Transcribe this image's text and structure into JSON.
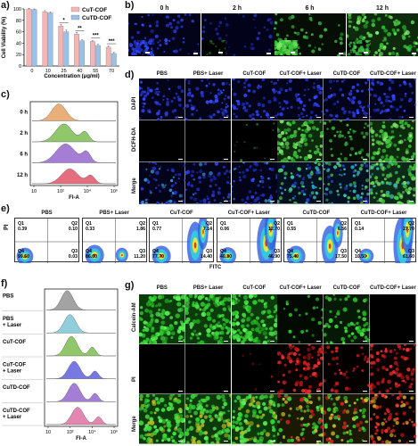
{
  "panels": {
    "a": {
      "letter": "a)",
      "chart_data": {
        "type": "bar",
        "categories": [
          "0",
          "10",
          "25",
          "40",
          "55",
          "70"
        ],
        "series": [
          {
            "name": "CuT-COF",
            "values": [
              100,
              95,
              70,
              56,
              43,
              33
            ],
            "errors": [
              1,
              2,
              3,
              3,
              2,
              2
            ],
            "color": "#f3b6b6"
          },
          {
            "name": "CuTD-COF",
            "values": [
              99,
              93,
              60,
              44,
              36,
              22
            ],
            "errors": [
              1,
              2,
              3,
              2,
              2,
              2
            ],
            "color": "#9bc2e6"
          }
        ],
        "ylim": [
          0,
          100
        ],
        "yticks": [
          "0",
          "20",
          "40",
          "60",
          "80",
          "100"
        ],
        "xlabel": "Concentration (μg/ml)",
        "ylabel": "Cell Viability (%)",
        "significance": [
          "*",
          "**",
          "***",
          "***"
        ]
      }
    },
    "b": {
      "letter": "b)",
      "timepoints": [
        "0 h",
        "2 h",
        "6 h",
        "12 h"
      ]
    },
    "c": {
      "letter": "c)",
      "chart_data": {
        "type": "area",
        "series": [
          {
            "name": "0 h",
            "color": "#e8a76a"
          },
          {
            "name": "2 h",
            "color": "#86c15c"
          },
          {
            "name": "6 h",
            "color": "#9b6fd0"
          },
          {
            "name": "12 h",
            "color": "#e25f70"
          }
        ],
        "xlabel": "FI-A",
        "xticks": [
          "10",
          "10²",
          "10⁴",
          "10⁶"
        ]
      }
    },
    "d": {
      "letter": "d)",
      "columns": [
        "PBS",
        "PBS+ Laser",
        "CuT-COF",
        "CuT-COF+ Laser",
        "CuTD-COF",
        "CuTD-COF+ Laser"
      ],
      "rows": [
        "DAPI",
        "DCFH-DA",
        "Merge"
      ]
    },
    "e": {
      "letter": "e)",
      "ylabel": "PI",
      "xlabel": "FITC",
      "plots": [
        {
          "title": "PBS",
          "q1": "0.39",
          "q2": "0.10",
          "q3": "0.03",
          "q4": "99.50"
        },
        {
          "title": "PBS+ Laser",
          "q1": "0.33",
          "q2": "1.86",
          "q3": "11.20",
          "q4": "86.60"
        },
        {
          "title": "CuT-COF",
          "q1": "0.77",
          "q2": "7.14",
          "q3": "14.40",
          "q4": "77.70"
        },
        {
          "title": "CuT-COF+ Laser",
          "q1": "0.06",
          "q2": "12.70",
          "q3": "46.90",
          "q4": "40.30"
        },
        {
          "title": "CuTD-COF",
          "q1": "0.55",
          "q2": "6.56",
          "q3": "17.50",
          "q4": "75.40"
        },
        {
          "title": "CuTD-COF+ Laser",
          "q1": "0.14",
          "q2": "27.70",
          "q3": "61.60",
          "q4": "10.50"
        }
      ],
      "qlabels": {
        "q1": "Q1",
        "q2": "Q2",
        "q3": "Q3",
        "q4": "Q4"
      }
    },
    "f": {
      "letter": "f)",
      "chart_data": {
        "type": "area",
        "series": [
          {
            "name": "PBS",
            "color": "#9a9a9a"
          },
          {
            "name": "PBS+ Laser",
            "color": "#86c9d8"
          },
          {
            "name": "CuT-COF",
            "color": "#86c15c"
          },
          {
            "name": "CuT-COF + Laser",
            "color": "#6a6ae0"
          },
          {
            "name": "CuTD-COF",
            "color": "#9b6fd0"
          },
          {
            "name": "CuTD-COF + Laser",
            "color": "#e07aa8"
          }
        ],
        "xlabel": "FI-A",
        "xticks": [
          "10",
          "10²",
          "10⁴",
          "10⁶"
        ]
      }
    },
    "g": {
      "letter": "g)",
      "columns": [
        "PBS",
        "PBS+ Laser",
        "CuT-COF",
        "CuT-COF+ Laser",
        "CuTD-COF",
        "CuTD-COF+ Laser"
      ],
      "rows": [
        "Calcein-AM",
        "PI",
        "Merge"
      ]
    }
  }
}
